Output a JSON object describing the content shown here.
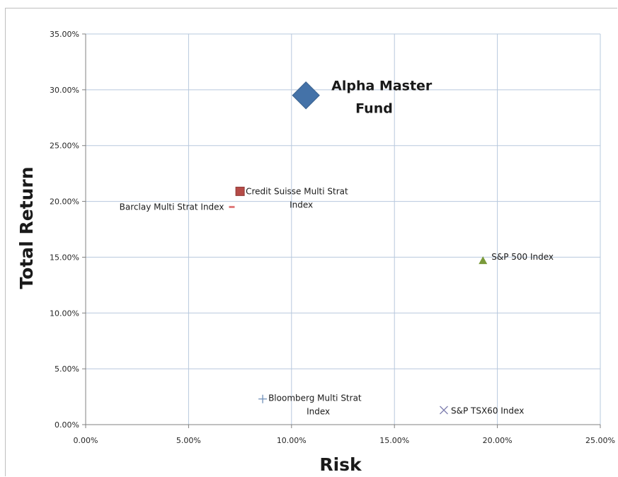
{
  "chart_data": {
    "type": "scatter",
    "xlabel": "Risk",
    "ylabel": "Total Return",
    "xlim": [
      0,
      0.25
    ],
    "ylim": [
      0,
      0.35
    ],
    "x_ticks": [
      "0.00%",
      "5.00%",
      "10.00%",
      "15.00%",
      "20.00%",
      "25.00%"
    ],
    "y_ticks": [
      "0.00%",
      "5.00%",
      "10.00%",
      "15.00%",
      "20.00%",
      "25.00%",
      "30.00%",
      "35.00%"
    ],
    "grid": true,
    "legend": "none",
    "points": [
      {
        "name": "alpha-master-fund",
        "label_lines": [
          "Alpha Master",
          "Fund"
        ],
        "x": 0.107,
        "y": 0.295,
        "marker": "diamond",
        "color": "#4472a8",
        "emphasis": true
      },
      {
        "name": "credit-suisse",
        "label_lines": [
          "Credit Suisse Multi Strat",
          "Index"
        ],
        "x": 0.075,
        "y": 0.209,
        "marker": "square",
        "color": "#b54b47"
      },
      {
        "name": "barclay",
        "label_lines": [
          "Barclay Multi Strat Index"
        ],
        "x": 0.071,
        "y": 0.195,
        "marker": "dash",
        "color": "#e07b7b"
      },
      {
        "name": "sp500",
        "label_lines": [
          "S&P 500 Index"
        ],
        "x": 0.193,
        "y": 0.147,
        "marker": "triangle",
        "color": "#7a9a3a"
      },
      {
        "name": "bloomberg",
        "label_lines": [
          "Bloomberg Multi Strat",
          "Index"
        ],
        "x": 0.086,
        "y": 0.023,
        "marker": "plus",
        "color": "#6f8fb8"
      },
      {
        "name": "sp-tsx60",
        "label_lines": [
          "S&P TSX60 Index"
        ],
        "x": 0.174,
        "y": 0.013,
        "marker": "x",
        "color": "#7f7fb0"
      }
    ]
  }
}
